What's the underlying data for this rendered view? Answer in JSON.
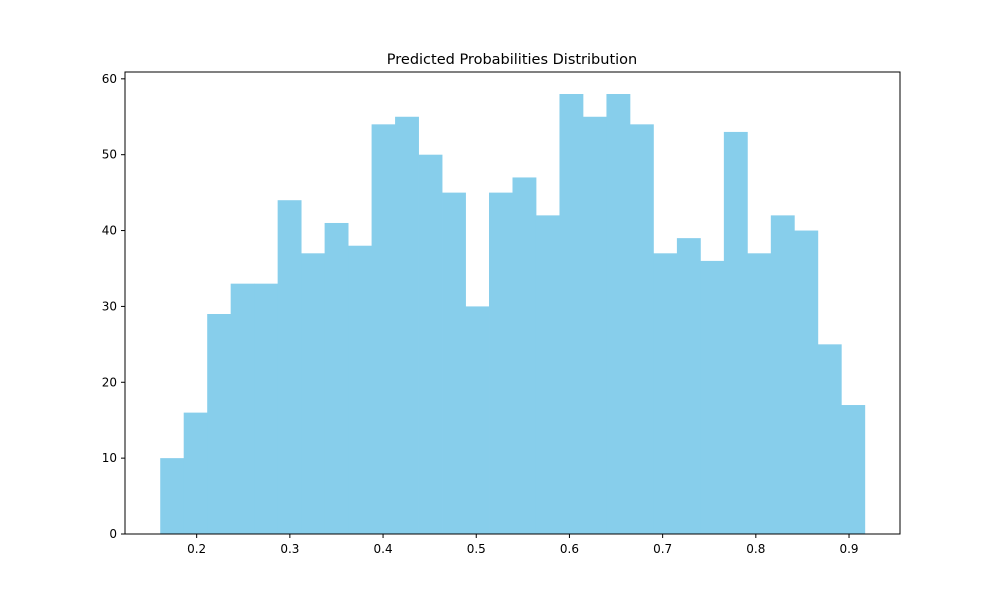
{
  "chart_data": {
    "type": "bar",
    "title": "Predicted Probabilities Distribution",
    "xlabel": "",
    "ylabel": "",
    "bin_edges": [
      0.1609,
      0.1861,
      0.2113,
      0.2365,
      0.2617,
      0.2869,
      0.3121,
      0.3373,
      0.3625,
      0.3877,
      0.4129,
      0.4381,
      0.4633,
      0.4885,
      0.5137,
      0.5389,
      0.5641,
      0.5893,
      0.6145,
      0.6397,
      0.6649,
      0.6901,
      0.7153,
      0.7405,
      0.7657,
      0.7909,
      0.8161,
      0.8413,
      0.8665,
      0.8917,
      0.9169
    ],
    "values": [
      10,
      16,
      29,
      33,
      33,
      44,
      37,
      41,
      38,
      54,
      55,
      50,
      45,
      30,
      45,
      47,
      42,
      58,
      55,
      58,
      54,
      37,
      39,
      36,
      53,
      37,
      42,
      40,
      25,
      17
    ],
    "xlim": [
      0.1231,
      0.9547
    ],
    "ylim": [
      0,
      60.9
    ],
    "xticks": [
      0.2,
      0.3,
      0.4,
      0.5,
      0.6,
      0.7,
      0.8,
      0.9
    ],
    "xtick_labels": [
      "0.2",
      "0.3",
      "0.4",
      "0.5",
      "0.6",
      "0.7",
      "0.8",
      "0.9"
    ],
    "yticks": [
      0,
      10,
      20,
      30,
      40,
      50,
      60
    ],
    "ytick_labels": [
      "0",
      "10",
      "20",
      "30",
      "40",
      "50",
      "60"
    ],
    "bar_color": "#87ceeb",
    "grid": false,
    "legend": "none"
  }
}
